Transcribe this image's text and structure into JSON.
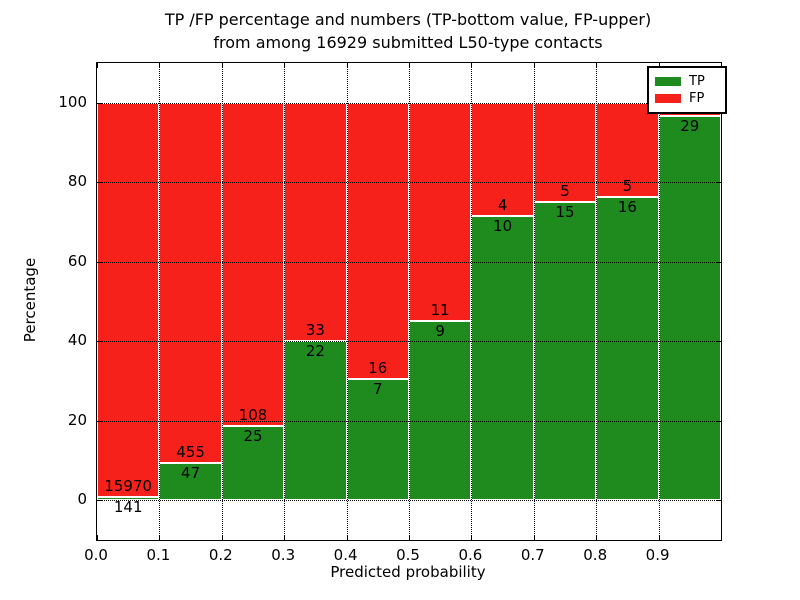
{
  "title": {
    "line1": "TP /FP percentage and numbers (TP-bottom value, FP-upper)",
    "line2": "from among 16929 submitted L50-type contacts"
  },
  "axes": {
    "xlabel": "Predicted probability",
    "ylabel": "Percentage"
  },
  "legend": {
    "items": [
      {
        "label": "TP",
        "color": "#1f8b1f"
      },
      {
        "label": "FP",
        "color": "#f6211a"
      }
    ],
    "position": "upper right"
  },
  "chart_data": {
    "type": "bar",
    "stacking": "percent",
    "title": "TP /FP percentage and numbers (TP-bottom value, FP-upper) from among 16929 submitted L50-type contacts",
    "xlabel": "Predicted probability",
    "ylabel": "Percentage",
    "categories": [
      "0.0-0.1",
      "0.1-0.2",
      "0.2-0.3",
      "0.3-0.4",
      "0.4-0.5",
      "0.5-0.6",
      "0.6-0.7",
      "0.7-0.8",
      "0.8-0.9",
      "0.9-1.0"
    ],
    "series": [
      {
        "name": "TP",
        "color": "#1f8b1f",
        "values": [
          141,
          47,
          25,
          22,
          7,
          9,
          10,
          15,
          16,
          29
        ]
      },
      {
        "name": "FP",
        "color": "#f6211a",
        "values": [
          15970,
          455,
          108,
          33,
          16,
          11,
          4,
          5,
          5,
          null
        ]
      }
    ],
    "tp_percent": [
      0.88,
      9.36,
      18.8,
      40.0,
      30.43,
      45.0,
      71.43,
      75.0,
      76.19,
      96.67
    ],
    "tp_labels": [
      "141",
      "47",
      "25",
      "22",
      "7",
      "9",
      "10",
      "15",
      "16",
      "29"
    ],
    "fp_labels": [
      "15970",
      "455",
      "108",
      "33",
      "16",
      "11",
      "4",
      "5",
      "5",
      ""
    ],
    "x_tick_labels": [
      "0.0",
      "0.1",
      "0.2",
      "0.3",
      "0.4",
      "0.5",
      "0.6",
      "0.7",
      "0.8",
      "0.9"
    ],
    "y_tick_values": [
      0,
      20,
      40,
      60,
      80,
      100
    ],
    "xlim": [
      0.0,
      1.0
    ],
    "ylim": [
      -10,
      110
    ],
    "grid": "dotted",
    "legend_position": "upper right",
    "note": "FP count label of last bin hidden behind legend"
  }
}
